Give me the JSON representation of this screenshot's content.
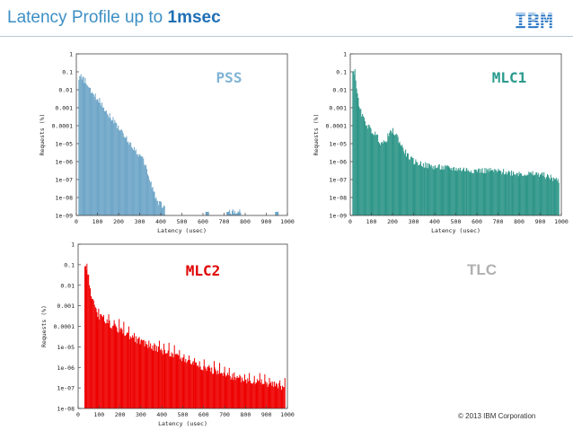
{
  "slide": {
    "title_prefix": "Latency Profile up to ",
    "title_bold": "1msec",
    "logo_text": "IBM",
    "copyright": "© 2013 IBM Corporation",
    "extra_label": "TLC",
    "extra_label_color": "#b0b0b0",
    "title_color": "#3c8fc4",
    "logo_color": "#1f70c1"
  },
  "chart_data": [
    {
      "id": "pss",
      "type": "bar",
      "title": "PSS",
      "title_color": "#7fb3d5",
      "fill_color": "#6fa6c8",
      "xlabel": "Latency (usec)",
      "ylabel": "Requests (%)",
      "xlim": [
        0,
        1000
      ],
      "ylim_exp": [
        -9,
        0
      ],
      "xticks": [
        0,
        100,
        200,
        300,
        400,
        500,
        600,
        700,
        800,
        900,
        1000
      ],
      "yticks": [
        "1e-09",
        "1e-08",
        "1e-07",
        "1e-06",
        "1e-05",
        "0.0001",
        "0.001",
        "0.01",
        "0.1",
        "1"
      ],
      "series": [
        {
          "name": "PSS",
          "x": [
            20,
            40,
            60,
            80,
            100,
            120,
            140,
            160,
            180,
            200,
            220,
            240,
            260,
            280,
            300,
            320,
            340,
            360,
            380,
            400,
            420,
            620,
            720,
            780,
            950
          ],
          "log10_y": [
            -1.3,
            -1.5,
            -2.0,
            -2.3,
            -2.5,
            -2.8,
            -3.2,
            -3.5,
            -3.8,
            -4.1,
            -4.5,
            -4.8,
            -5.1,
            -5.4,
            -5.7,
            -6.0,
            -6.8,
            -7.5,
            -8.2,
            -8.4,
            -8.6,
            -8.8,
            -8.8,
            -8.8,
            -8.8
          ]
        }
      ]
    },
    {
      "id": "mlc1",
      "type": "bar",
      "title": "MLC1",
      "title_color": "#2a9a8c",
      "fill_color": "#2e9688",
      "xlabel": "Latency (usec)",
      "ylabel": "Requests (%)",
      "xlim": [
        0,
        1000
      ],
      "ylim_exp": [
        -9,
        0
      ],
      "xticks": [
        0,
        100,
        200,
        300,
        400,
        500,
        600,
        700,
        800,
        900,
        1000
      ],
      "yticks": [
        "1e-09",
        "1e-08",
        "1e-07",
        "1e-06",
        "1e-05",
        "0.0001",
        "0.001",
        "0.01",
        "0.1",
        "1"
      ],
      "series": [
        {
          "name": "MLC1",
          "x": [
            20,
            40,
            60,
            80,
            100,
            120,
            140,
            160,
            180,
            200,
            220,
            240,
            260,
            280,
            300,
            350,
            400,
            450,
            500,
            550,
            600,
            650,
            700,
            750,
            800,
            850,
            900,
            950,
            990
          ],
          "log10_y": [
            -1.0,
            -3.0,
            -3.6,
            -4.0,
            -4.3,
            -4.5,
            -4.9,
            -5.0,
            -4.5,
            -4.3,
            -4.6,
            -5.1,
            -5.5,
            -5.8,
            -6.0,
            -6.2,
            -6.3,
            -6.35,
            -6.4,
            -6.45,
            -6.5,
            -6.5,
            -6.55,
            -6.6,
            -6.65,
            -6.7,
            -6.7,
            -6.9,
            -7.1
          ]
        }
      ]
    },
    {
      "id": "mlc2",
      "type": "bar",
      "title": "MLC2",
      "title_color": "#e00000",
      "fill_color": "#ee0000",
      "xlabel": "Latency (usec)",
      "ylabel": "Requests (%)",
      "xlim": [
        0,
        1000
      ],
      "ylim_exp": [
        -8,
        0
      ],
      "xticks": [
        0,
        100,
        200,
        300,
        400,
        500,
        600,
        700,
        800,
        900,
        1000
      ],
      "yticks": [
        "1e-08",
        "1e-07",
        "1e-06",
        "1e-05",
        "0.0001",
        "0.001",
        "0.01",
        "0.1",
        "1"
      ],
      "series": [
        {
          "name": "MLC2",
          "x": [
            40,
            60,
            80,
            100,
            150,
            200,
            250,
            300,
            350,
            400,
            450,
            500,
            550,
            600,
            650,
            700,
            750,
            800,
            850,
            900,
            950,
            990
          ],
          "log10_y": [
            -1.1,
            -2.6,
            -3.2,
            -3.5,
            -3.9,
            -4.2,
            -4.5,
            -4.8,
            -5.0,
            -5.2,
            -5.4,
            -5.6,
            -5.8,
            -6.0,
            -6.2,
            -6.4,
            -6.5,
            -6.6,
            -6.7,
            -6.8,
            -6.9,
            -7.0
          ]
        }
      ]
    }
  ]
}
